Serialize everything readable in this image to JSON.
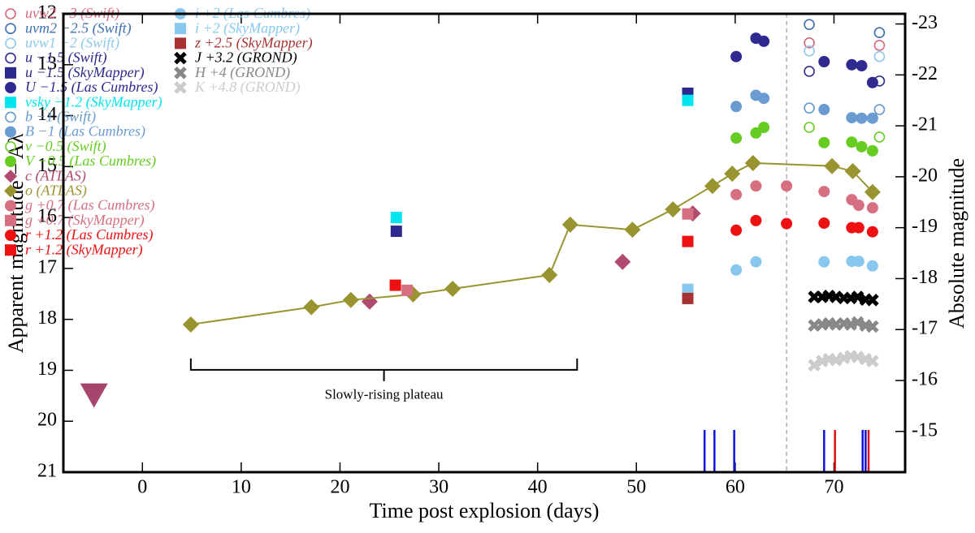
{
  "chart_data": {
    "type": "scatter",
    "xlabel": "Time post explosion (days)",
    "ylabel": "Apparent magnitude − Aλ",
    "y2label": "Absolute magnitude",
    "xlim": [
      -8,
      77.2
    ],
    "xticks": [
      0,
      10,
      20,
      30,
      40,
      50,
      60,
      70
    ],
    "ylim": [
      21,
      12
    ],
    "yticks": [
      12,
      13,
      14,
      15,
      16,
      17,
      18,
      19,
      20,
      21
    ],
    "y2lim": [
      -14.2,
      -23.2
    ],
    "y2ticks": [
      -23,
      -22,
      -21,
      -20,
      -19,
      -18,
      -17,
      -16,
      -15
    ],
    "annotation": {
      "text": "Slowly-rising plateau",
      "x": [
        4.9,
        44
      ],
      "y": 18.99
    },
    "reference_line_x": 65.2,
    "upper_limit": {
      "x": -4.9,
      "y": 19.48,
      "color": "#a8456e"
    },
    "spectra_epochs": [
      {
        "color": "#1010e0",
        "x": [
          56.9,
          57.9,
          59.9,
          69.0,
          72.9,
          73.2
        ]
      },
      {
        "color": "#e01010",
        "x": [
          70.1,
          73.5
        ]
      }
    ],
    "series": [
      {
        "name": "uvw2 −3 (Swift)",
        "color": "#d9667a",
        "marker": "circle-open",
        "x": [
          67.5,
          74.6
        ],
        "values": [
          12.57,
          12.62
        ]
      },
      {
        "name": "uvm2 −2.5 (Swift)",
        "color": "#3d6fb0",
        "marker": "circle-open",
        "x": [
          67.5,
          74.6
        ],
        "values": [
          12.21,
          12.37
        ]
      },
      {
        "name": "uvw1 −2 (Swift)",
        "color": "#8ec8ea",
        "marker": "circle-open",
        "x": [
          67.5,
          74.6
        ],
        "values": [
          12.73,
          12.84
        ]
      },
      {
        "name": "u −1.5 (Swift)",
        "color": "#2c2a8c",
        "marker": "circle-open",
        "x": [
          67.5,
          74.6
        ],
        "values": [
          13.13,
          13.32
        ]
      },
      {
        "name": "u −1.5 (SkyMapper)",
        "color": "#2c2a8c",
        "marker": "square",
        "x": [
          25.7,
          55.2
        ],
        "values": [
          16.27,
          13.56
        ]
      },
      {
        "name": "U −1.5 (Las Cumbres)",
        "color": "#2e2a8f",
        "marker": "circle",
        "x": [
          60.1,
          62.1,
          62.9,
          69.0,
          71.8,
          72.8,
          73.9
        ],
        "values": [
          12.84,
          12.48,
          12.54,
          12.94,
          13.0,
          13.02,
          13.35
        ]
      },
      {
        "name": "vsky −1.2 (SkyMapper)",
        "color": "#00e5ee",
        "marker": "square",
        "x": [
          25.7,
          55.2
        ],
        "values": [
          16.0,
          13.7
        ]
      },
      {
        "name": "b −1 (Swift)",
        "color": "#6699cc",
        "marker": "circle-open",
        "x": [
          67.5,
          74.6
        ],
        "values": [
          13.85,
          13.88
        ]
      },
      {
        "name": "B −1 (Las Cumbres)",
        "color": "#6a9bd1",
        "marker": "circle",
        "x": [
          60.1,
          62.1,
          62.9,
          69.0,
          71.8,
          72.8,
          73.9
        ],
        "values": [
          13.82,
          13.6,
          13.66,
          13.88,
          14.04,
          14.05,
          14.05
        ]
      },
      {
        "name": "v −0.5 (Swift)",
        "color": "#66cc22",
        "marker": "circle-open",
        "x": [
          67.5,
          74.6
        ],
        "values": [
          14.23,
          14.42
        ]
      },
      {
        "name": "V −0.5 (Las Cumbres)",
        "color": "#66cc22",
        "marker": "circle",
        "x": [
          60.1,
          62.1,
          62.9,
          69.0,
          71.8,
          72.8,
          73.9
        ],
        "values": [
          14.44,
          14.34,
          14.23,
          14.53,
          14.52,
          14.61,
          14.69
        ]
      },
      {
        "name": "c (ATLAS)",
        "color": "#b04a70",
        "marker": "diamond",
        "x": [
          23.0,
          48.6,
          55.7
        ],
        "values": [
          17.65,
          16.87,
          15.92
        ]
      },
      {
        "name": "o (ATLAS)",
        "color": "#9a9430",
        "marker": "diamond",
        "line": true,
        "x": [
          4.9,
          17.1,
          21.1,
          27.4,
          31.4,
          41.2,
          43.3,
          49.6,
          53.7,
          57.7,
          59.7,
          61.8,
          69.8,
          71.9,
          73.9
        ],
        "values": [
          18.1,
          17.76,
          17.62,
          17.51,
          17.4,
          17.13,
          16.14,
          16.24,
          15.84,
          15.38,
          15.14,
          14.93,
          14.99,
          15.09,
          15.5
        ]
      },
      {
        "name": "g +0.7 (Las Cumbres)",
        "color": "#d66f80",
        "marker": "circle",
        "x": [
          60.1,
          62.1,
          65.2,
          69.0,
          71.8,
          72.5,
          73.9
        ],
        "values": [
          15.55,
          15.38,
          15.38,
          15.49,
          15.65,
          15.76,
          15.81
        ]
      },
      {
        "name": "g +0.7 (SkyMapper)",
        "color": "#d67080",
        "marker": "square",
        "x": [
          26.8,
          55.2
        ],
        "values": [
          17.43,
          15.93
        ]
      },
      {
        "name": "r +1.2 (Las Cumbres)",
        "color": "#ee1111",
        "marker": "circle",
        "x": [
          60.1,
          62.1,
          65.2,
          69.0,
          71.8,
          72.5,
          73.9
        ],
        "values": [
          16.25,
          16.06,
          16.12,
          16.11,
          16.2,
          16.2,
          16.28
        ]
      },
      {
        "name": "r +1.2 (SkyMapper)",
        "color": "#ee1111",
        "marker": "square",
        "x": [
          25.6,
          55.2
        ],
        "values": [
          17.33,
          16.47
        ]
      },
      {
        "name": "i +2 (Las Cumbres)",
        "color": "#88c8ee",
        "marker": "circle",
        "x": [
          60.1,
          62.1,
          69.0,
          71.8,
          72.5,
          73.9
        ],
        "values": [
          17.03,
          16.87,
          16.87,
          16.86,
          16.86,
          16.95
        ]
      },
      {
        "name": "i +2 (SkyMapper)",
        "color": "#88c8ee",
        "marker": "square",
        "x": [
          55.2
        ],
        "values": [
          17.41
        ]
      },
      {
        "name": "z +2.5 (SkyMapper)",
        "color": "#a83232",
        "marker": "square",
        "x": [
          55.2
        ],
        "values": [
          17.59
        ]
      },
      {
        "name": "J +3.2 (GROND)",
        "color": "#000000",
        "marker": "x",
        "x": [
          68.0,
          68.8,
          69.5,
          70.2,
          71.0,
          71.7,
          72.4,
          73.2,
          73.9
        ],
        "values": [
          17.56,
          17.56,
          17.54,
          17.56,
          17.58,
          17.58,
          17.56,
          17.61,
          17.62
        ]
      },
      {
        "name": "H +4 (GROND)",
        "color": "#888888",
        "marker": "x",
        "x": [
          68.0,
          68.8,
          69.5,
          70.2,
          71.0,
          71.7,
          72.4,
          73.2,
          73.9
        ],
        "values": [
          18.12,
          18.1,
          18.08,
          18.1,
          18.08,
          18.1,
          18.06,
          18.12,
          18.14
        ]
      },
      {
        "name": "K +4.8 (GROND)",
        "color": "#cccccc",
        "marker": "x",
        "x": [
          68.0,
          68.8,
          69.5,
          70.2,
          71.0,
          71.7,
          72.4,
          73.2,
          73.9
        ],
        "values": [
          18.9,
          18.82,
          18.78,
          18.8,
          18.76,
          18.72,
          18.74,
          18.78,
          18.82
        ]
      }
    ]
  }
}
